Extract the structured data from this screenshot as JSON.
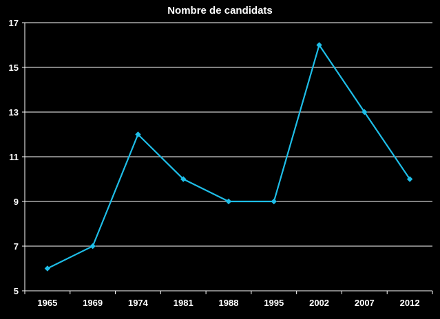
{
  "chart_data": {
    "type": "line",
    "title": "Nombre de candidats",
    "xlabel": "",
    "ylabel": "",
    "categories": [
      "1965",
      "1969",
      "1974",
      "1981",
      "1988",
      "1995",
      "2002",
      "2007",
      "2012"
    ],
    "series": [
      {
        "values": [
          6,
          7,
          12,
          10,
          9,
          9,
          16,
          13,
          10
        ]
      }
    ],
    "ylim": [
      5,
      17
    ],
    "yticks": [
      5,
      7,
      9,
      11,
      13,
      15,
      17
    ],
    "grid": true,
    "legend": "none",
    "colors": {
      "background": "#000000",
      "line": "#1ebee8",
      "grid": "#ffffff",
      "text": "#ffffff"
    }
  }
}
